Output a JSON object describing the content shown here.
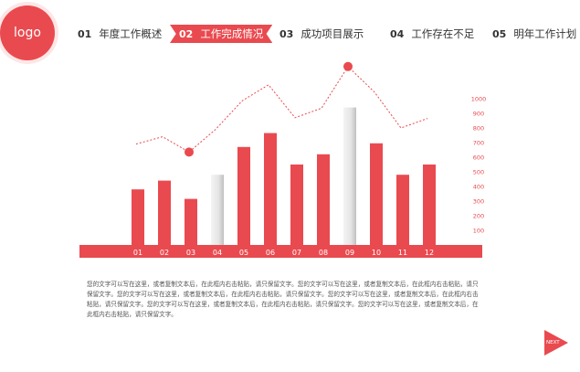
{
  "logo": {
    "text": "logo"
  },
  "nav": {
    "items": [
      {
        "num": "01",
        "label": "年度工作概述",
        "active": false
      },
      {
        "num": "02",
        "label": "工作完成情况",
        "active": true
      },
      {
        "num": "03",
        "label": "成功项目展示",
        "active": false
      },
      {
        "num": "04",
        "label": "工作存在不足",
        "active": false
      },
      {
        "num": "05",
        "label": "明年工作计划",
        "active": false
      }
    ]
  },
  "colors": {
    "accent": "#e94a4f",
    "highlight_gray": "#e6e6e6"
  },
  "chart_data": {
    "type": "bar",
    "categories": [
      "01",
      "02",
      "03",
      "04",
      "05",
      "06",
      "07",
      "08",
      "09",
      "10",
      "11",
      "12"
    ],
    "values": [
      380,
      440,
      315,
      480,
      670,
      765,
      550,
      620,
      940,
      695,
      480,
      550
    ],
    "highlighted": [
      "04",
      "09"
    ],
    "y_ticks": [
      100,
      200,
      300,
      400,
      500,
      600,
      700,
      800,
      900,
      1000
    ],
    "ylim": [
      0,
      1000
    ],
    "line_series": {
      "values": [
        690,
        740,
        635,
        790,
        985,
        1095,
        870,
        935,
        1220,
        1045,
        800,
        865
      ],
      "marked": [
        "03",
        "09"
      ]
    },
    "title": "",
    "xlabel": "",
    "ylabel": ""
  },
  "paragraph": "您的文字可以写在这里，或者复制文本后，在此框内右击粘贴，请只保留文字。您的文字可以写在这里，或者复制文本后，在此框内右击粘贴，请只保留文字。您的文字可以写在这里，或者复制文本后，在此框内右击粘贴，请只保留文字。您的文字可以写在这里，或者复制文本后，在此框内右击粘贴，请只保留文字。您的文字可以写在这里，或者复制文本后，在此框内右击粘贴，请只保留文字。您的文字可以写在这里，或者复制文本后，在此框内右击粘贴，请只保留文字。",
  "next_button": {
    "label": "NEXT"
  }
}
